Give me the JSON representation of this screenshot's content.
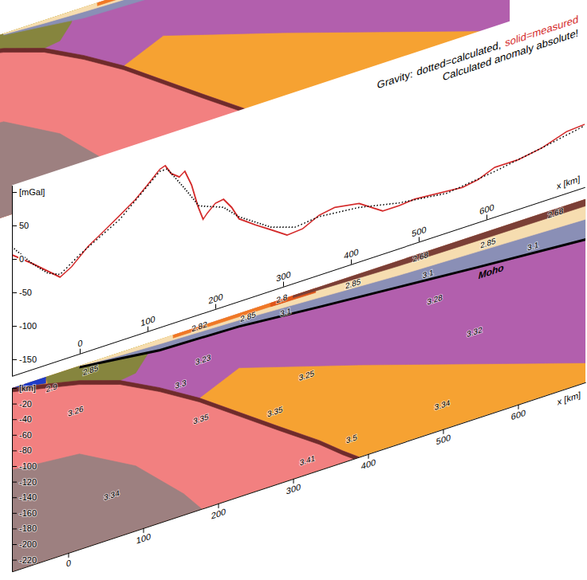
{
  "chart_data": [
    {
      "type": "line",
      "title": "Gravity:",
      "subtitle": "Calculated anomaly absolute!",
      "legend": "top-right",
      "xlabel": "x [km]",
      "xlim": [
        -100,
        745
      ],
      "xticks": [
        0,
        100,
        200,
        300,
        400,
        500,
        600
      ],
      "ylim": [
        -175,
        110
      ],
      "yticks": [
        {
          "value": 100,
          "label": "[mGal]"
        },
        50,
        0,
        -50,
        -100,
        -150
      ],
      "series": [
        {
          "name": "dotted=calculated,",
          "color": "#000000",
          "line_style": "dotted",
          "x": [
            -100,
            -71,
            -47,
            -29,
            0,
            59,
            118,
            129,
            153,
            176,
            212,
            235,
            282,
            318,
            353,
            412,
            471,
            541,
            612,
            682,
            745
          ],
          "values": [
            18,
            -16,
            -39,
            -47,
            -27,
            6,
            58,
            58,
            23,
            -13,
            -27,
            -49,
            -80,
            -92,
            -88,
            -94,
            -107,
            -116,
            -107,
            -95,
            -83
          ]
        },
        {
          "name": "solid=measured",
          "color": "#d42a2a",
          "line_style": "solid",
          "x": [
            -100,
            -71,
            -47,
            -29,
            -12,
            12,
            35,
            59,
            82,
            100,
            118,
            126,
            135,
            147,
            155,
            165,
            174,
            182,
            188,
            200,
            212,
            224,
            235,
            259,
            282,
            306,
            329,
            353,
            376,
            412,
            447,
            471,
            494,
            541,
            565,
            588,
            612,
            647,
            682,
            718,
            745
          ],
          "values": [
            6,
            -16,
            -36,
            -51,
            -41,
            -19,
            -4,
            12,
            28,
            44,
            61,
            64,
            49,
            40,
            46,
            22,
            -12,
            -35,
            -28,
            -17,
            -15,
            -31,
            -52,
            -69,
            -84,
            -100,
            -98,
            -86,
            -82,
            -88,
            -111,
            -111,
            -109,
            -113,
            -115,
            -111,
            -101,
            -101,
            -95,
            -83,
            -81
          ]
        }
      ]
    },
    {
      "type": "polygon",
      "xlabel": "x [km]",
      "xlim": [
        -75,
        690
      ],
      "xticks": [
        0,
        100,
        200,
        300,
        400,
        500,
        600
      ],
      "ylim": [
        -235,
        0
      ],
      "yticks": [
        {
          "value": 0,
          "label": "[km]"
        },
        -20,
        -40,
        -60,
        -80,
        -100,
        -120,
        -140,
        -160,
        -180,
        -200,
        -220
      ],
      "bodies": [
        {
          "color": "#f6a232",
          "x": [
            -75,
            690,
            690,
            -75
          ],
          "y": [
            0,
            0,
            -235,
            -235
          ],
          "labels": [
            {
              "x": 318,
              "y": -112,
              "density": 3.25
            },
            {
              "x": 499,
              "y": -207,
              "density": 3.34
            },
            {
              "x": 276,
              "y": -145,
              "density": 3.35
            }
          ]
        },
        {
          "color": "#f28080",
          "x": [
            -75,
            -27,
            15,
            69,
            122,
            175,
            228,
            281,
            335,
            366,
            388,
            -75
          ],
          "y": [
            0,
            -10,
            -19,
            -36,
            -62,
            -92,
            -127,
            -162,
            -197,
            -220,
            -235,
            -235
          ],
          "labels": [
            {
              "x": 10,
              "y": -60,
              "density": 3.26
            },
            {
              "x": 177,
              "y": -123,
              "density": 3.35
            },
            {
              "x": 319,
              "y": -221,
              "density": 3.41
            }
          ]
        },
        {
          "color": "#9d8080",
          "x": [
            -75,
            15,
            90,
            154,
            178,
            -75
          ],
          "y": [
            -105,
            -113,
            -152,
            -208,
            -235,
            -235
          ],
          "labels": [
            {
              "x": 58,
              "y": -183,
              "density": 3.34
            }
          ]
        },
        {
          "color": "#b25fad",
          "x": [
            15,
            690,
            690,
            388,
            228,
            175,
            122,
            69,
            15
          ],
          "y": [
            0,
            0,
            -210,
            -117,
            -70,
            -92,
            -62,
            -36,
            -19
          ],
          "labels": [
            {
              "x": 180,
              "y": -48,
              "density": 3.23
            },
            {
              "x": 150,
              "y": -70,
              "density": 3.3
            },
            {
              "x": 489,
              "y": -69,
              "density": 3.28
            },
            {
              "x": 542,
              "y": -127,
              "density": 3.32
            }
          ]
        },
        {
          "color": "#86853e",
          "x": [
            -30,
            110,
            105,
            90,
            69,
            15,
            -27
          ],
          "y": [
            0,
            0,
            -15,
            -33,
            -36,
            -19,
            -10
          ],
          "labels": [
            {
              "x": 30,
              "y": -14,
              "density": 2.85
            }
          ]
        },
        {
          "color": "#1f3cc8",
          "x": [
            -75,
            -30,
            -30,
            -75
          ],
          "y": [
            0,
            0,
            -8,
            -1
          ],
          "labels": [
            {
              "x": -22,
              "y": -20,
              "density": 2.9
            }
          ]
        },
        {
          "color": "#f2ee3a",
          "x": [
            15,
            140,
            140,
            15
          ],
          "y": [
            0,
            0,
            -3,
            -1
          ]
        },
        {
          "color": "#8a8fb6",
          "x": [
            15,
            70,
            122,
            228,
            335,
            441,
            547,
            690,
            690,
            547,
            441,
            335,
            228,
            122,
            70,
            15
          ],
          "y": [
            -1,
            -4,
            -6,
            -9,
            -14,
            -19,
            -22,
            -26,
            -52,
            -42,
            -34,
            -26,
            -17,
            -14,
            -8,
            -2
          ],
          "labels": [
            {
              "x": 290,
              "y": -22,
              "density": 3.1
            },
            {
              "x": 480,
              "y": -33,
              "density": 3.1
            },
            {
              "x": 620,
              "y": -42,
              "density": 3.1
            }
          ]
        },
        {
          "color": "#f6ddb0",
          "x": [
            15,
            690,
            690,
            547,
            441,
            335,
            228,
            122,
            70,
            15
          ],
          "y": [
            0,
            0,
            -26,
            -22,
            -19,
            -14,
            -9,
            -6,
            -4,
            -1
          ],
          "labels": [
            {
              "x": 240,
              "y": -12,
              "density": 2.85
            },
            {
              "x": 380,
              "y": -14,
              "density": 2.85
            },
            {
              "x": 560,
              "y": -19,
              "density": 2.85
            }
          ]
        },
        {
          "color": "#f07826",
          "x": [
            140,
            290,
            290,
            140
          ],
          "y": [
            0,
            0,
            -5,
            -4
          ],
          "labels": [
            {
              "x": 175,
              "y": -4,
              "density": 2.82
            }
          ]
        },
        {
          "color": "#e0561a",
          "x": [
            270,
            330,
            330,
            270
          ],
          "y": [
            0,
            0,
            -6,
            -5
          ],
          "labels": [
            {
              "x": 285,
              "y": -3,
              "density": 2.8
            }
          ]
        },
        {
          "color": "#7b3f36",
          "x": [
            300,
            690,
            690,
            547,
            441,
            335,
            300
          ],
          "y": [
            0,
            0,
            -9,
            -8,
            -7,
            -4,
            -3
          ],
          "labels": [
            {
              "x": 470,
              "y": -8,
              "density": 2.68
            },
            {
              "x": 650,
              "y": -9,
              "density": 2.68
            }
          ]
        },
        {
          "color": "#6f2b2b",
          "x": [
            -75,
            -27,
            15,
            69,
            122,
            175,
            228,
            281,
            335,
            366,
            388,
            388,
            366,
            335,
            281,
            228,
            175,
            122,
            69,
            15,
            -27,
            -75
          ],
          "y": [
            0,
            -10,
            -19,
            -36,
            -62,
            -92,
            -127,
            -162,
            -197,
            -220,
            -235,
            -240,
            -225,
            -202,
            -167,
            -132,
            -97,
            -67,
            -41,
            -24,
            -15,
            -5
          ],
          "labels": [
            {
              "x": 378,
              "y": -212,
              "density": 3.5
            }
          ]
        }
      ],
      "lines": [
        {
          "name": "Moho",
          "color": "#000000",
          "x": [
            15,
            70,
            122,
            228,
            335,
            441,
            547,
            690
          ],
          "y": [
            -2,
            -8,
            -14,
            -17,
            -26,
            -34,
            -42,
            -52
          ]
        }
      ]
    }
  ]
}
